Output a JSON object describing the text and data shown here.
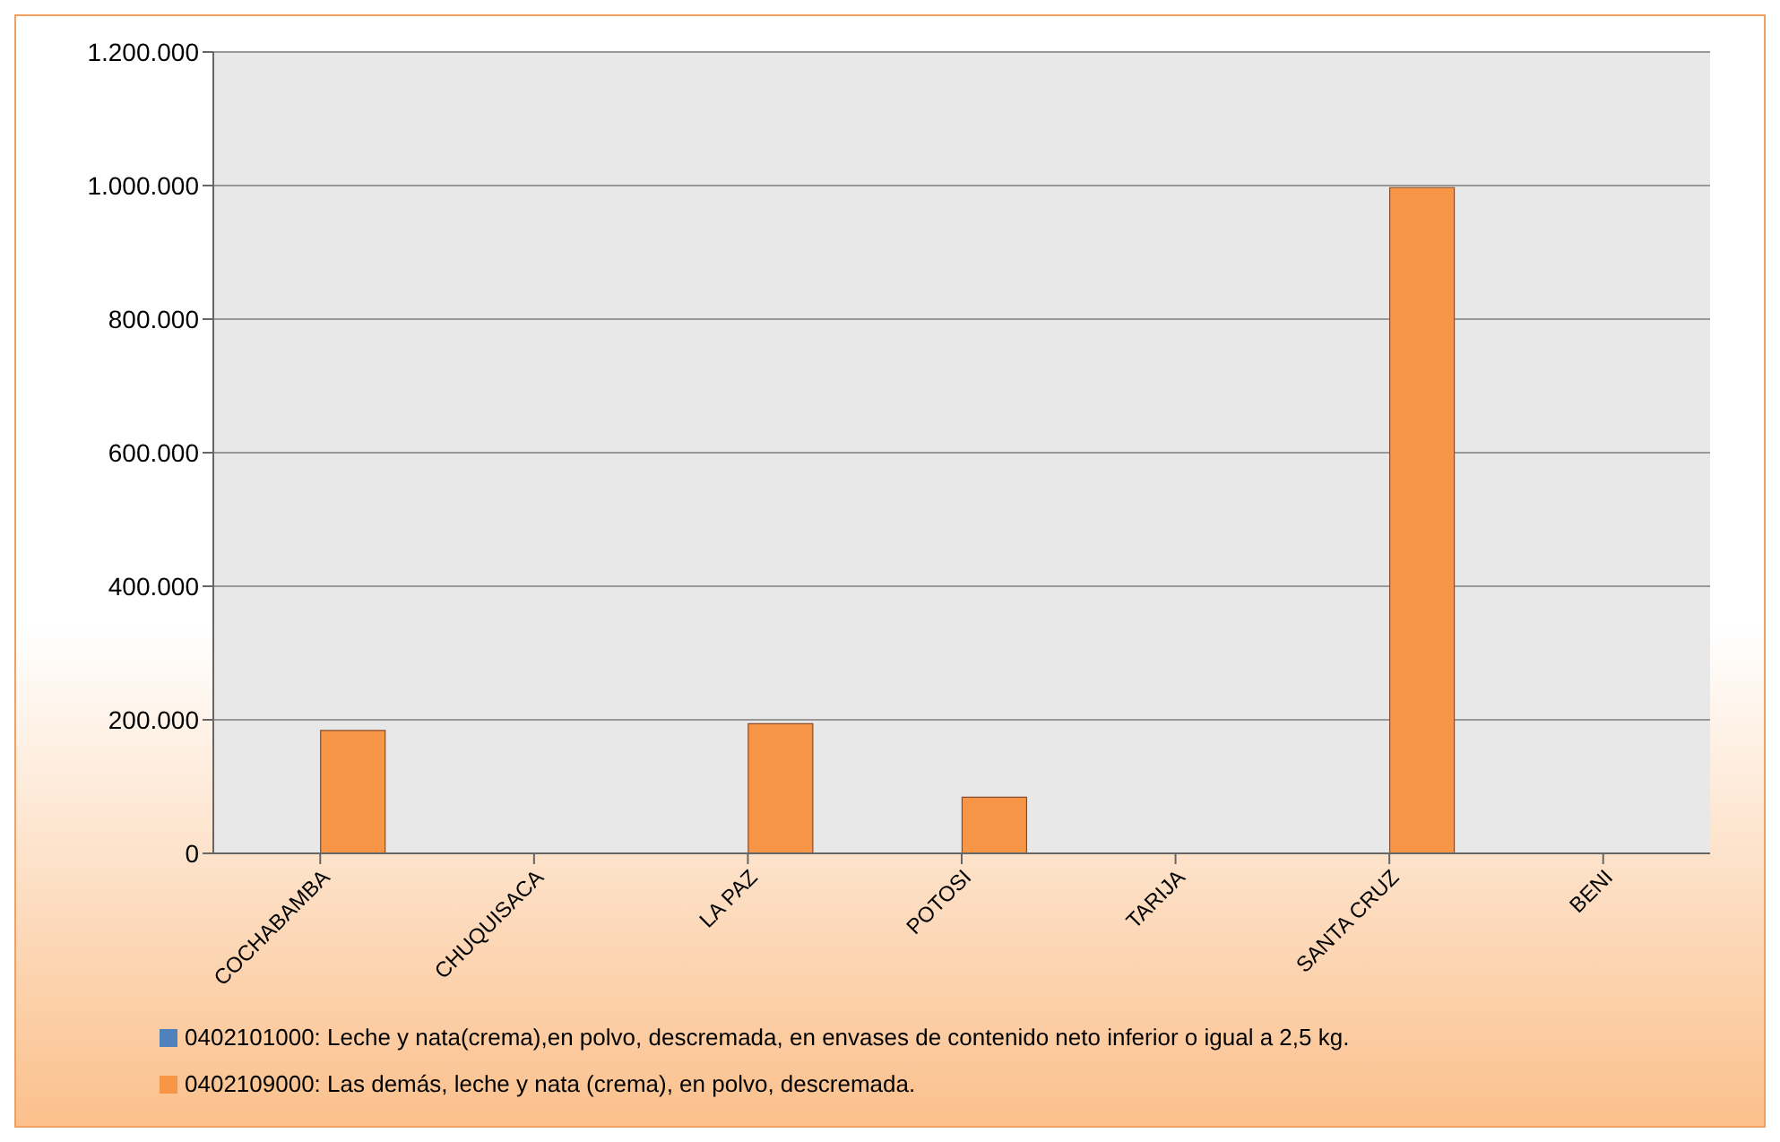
{
  "chart_data": {
    "type": "bar",
    "categories": [
      "COCHABAMBA",
      "CHUQUISACA",
      "LA PAZ",
      "POTOSI",
      "TARIJA",
      "SANTA CRUZ",
      "BENI"
    ],
    "series": [
      {
        "name": "0402101000: Leche y nata(crema),en polvo,  descremada, en envases de contenido neto inferior o igual a 2,5 kg.",
        "color": "#4f81bd",
        "values": [
          0,
          0,
          0,
          0,
          0,
          0,
          0
        ]
      },
      {
        "name": "0402109000: Las demás, leche y nata (crema), en polvo, descremada.",
        "color": "#f79646",
        "values": [
          184000,
          0,
          194000,
          84000,
          0,
          997000,
          0
        ]
      }
    ],
    "ylim": [
      0,
      1200000
    ],
    "yticks": [
      {
        "value": 0,
        "label": "0"
      },
      {
        "value": 200000,
        "label": "200.000"
      },
      {
        "value": 400000,
        "label": "400.000"
      },
      {
        "value": 600000,
        "label": "600.000"
      },
      {
        "value": 800000,
        "label": "800.000"
      },
      {
        "value": 1000000,
        "label": "1.000.000"
      },
      {
        "value": 1200000,
        "label": "1.200.000"
      }
    ],
    "grid": "y",
    "legend": "bottom"
  }
}
